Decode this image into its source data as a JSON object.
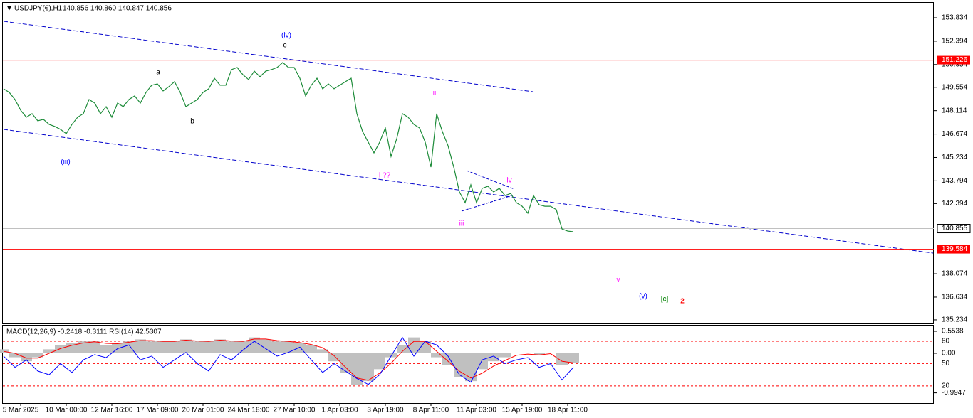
{
  "header": {
    "symbol": "USDJPY(€),H1",
    "quote": "140.856 140.860 140.847 140.856"
  },
  "chart_data": [
    {
      "type": "line",
      "color": "#1e8c3a",
      "categories": [
        null,
        null,
        null,
        "5 Mar 2025",
        null,
        null,
        null,
        null,
        null,
        null,
        null,
        "10 Mar 00:00",
        null,
        null,
        null,
        null,
        null,
        null,
        null,
        "12 Mar 16:00",
        null,
        null,
        null,
        null,
        null,
        null,
        null,
        "17 Mar 09:00",
        null,
        null,
        null,
        null,
        null,
        null,
        null,
        "20 Mar 01:00",
        null,
        null,
        null,
        null,
        null,
        null,
        null,
        "24 Mar 18:00",
        null,
        null,
        null,
        null,
        null,
        null,
        null,
        "27 Mar 10:00",
        null,
        null,
        null,
        null,
        null,
        null,
        null,
        "1 Apr 03:00",
        null,
        null,
        null,
        null,
        null,
        null,
        null,
        "3 Apr 19:00",
        null,
        null,
        null,
        null,
        null,
        null,
        null,
        "8 Apr 11:00",
        null,
        null,
        null,
        null,
        null,
        null,
        null,
        "11 Apr 03:00",
        null,
        null,
        null,
        null,
        null,
        null,
        null,
        "15 Apr 19:00",
        null,
        null,
        null,
        null,
        null,
        null,
        null,
        "18 Apr 11:00",
        null
      ],
      "values": [
        149.46,
        149.24,
        148.8,
        148.14,
        147.71,
        147.93,
        147.49,
        147.58,
        147.27,
        147.14,
        146.96,
        146.7,
        147.27,
        147.71,
        147.93,
        148.8,
        148.58,
        147.93,
        148.36,
        147.71,
        148.58,
        148.36,
        148.8,
        149.02,
        148.58,
        149.24,
        149.68,
        149.76,
        149.33,
        149.59,
        149.9,
        149.24,
        148.36,
        148.58,
        148.8,
        149.24,
        149.46,
        150.11,
        149.68,
        149.68,
        150.64,
        150.77,
        150.33,
        150.03,
        150.55,
        150.2,
        150.55,
        150.64,
        150.77,
        151.08,
        150.77,
        150.77,
        150.11,
        149.02,
        149.68,
        150.11,
        149.46,
        149.76,
        149.46,
        149.68,
        149.9,
        150.11,
        147.93,
        146.83,
        146.17,
        145.52,
        146.17,
        147.05,
        145.3,
        146.39,
        147.93,
        147.71,
        147.27,
        147.05,
        146.17,
        144.64,
        147.93,
        146.83,
        145.96,
        144.64,
        143.11,
        142.45,
        143.55,
        142.45,
        143.33,
        143.46,
        143.11,
        143.33,
        142.89,
        143.02,
        142.45,
        142.23,
        141.8,
        142.89,
        142.32,
        142.23,
        142.23,
        142.02,
        140.83,
        140.7,
        140.66
      ],
      "ylim": [
        135.013,
        154.709
      ],
      "yticks": [
        153.834,
        152.394,
        150.954,
        149.554,
        148.114,
        146.674,
        145.234,
        143.794,
        142.394,
        138.074,
        136.634,
        135.234
      ],
      "levels": [
        {
          "value": 151.226,
          "color": "#ff0000"
        },
        {
          "value": 139.584,
          "color": "#ff0000"
        }
      ],
      "current": {
        "value": 140.855,
        "color": "#c0c0c0"
      },
      "annotations": [
        {
          "text": "(iv)",
          "color": "#0000ff"
        },
        {
          "text": "c",
          "color": "#000000"
        },
        {
          "text": "a",
          "color": "#000000"
        },
        {
          "text": "b",
          "color": "#000000"
        },
        {
          "text": "(iii)",
          "color": "#0000ff"
        },
        {
          "text": "ii",
          "color": "#ff00ff"
        },
        {
          "text": "i ??",
          "color": "#ff00ff"
        },
        {
          "text": "iii",
          "color": "#ff00ff"
        },
        {
          "text": "iv",
          "color": "#ff00ff"
        },
        {
          "text": "v",
          "color": "#ff00ff"
        },
        {
          "text": "(v)",
          "color": "#0000ff"
        },
        {
          "text": "[c]",
          "color": "#008000"
        },
        {
          "text": "2",
          "color": "#ff0000"
        }
      ]
    },
    {
      "type": "indicator",
      "title": "MACD(12,26,9) -0.2418 -0.3111 RSI(14) 42.5307",
      "ylim": [
        -1.27,
        0.697
      ],
      "yticks": [
        0.5538,
        {
          "value": 0,
          "label": "0.00"
        },
        -0.9947
      ],
      "y2lim": [
        -4,
        101
      ],
      "y2ticks": [
        80,
        50,
        20
      ],
      "y2_level_color": "#ff0000",
      "series": [
        {
          "style": "histogram",
          "color": "#c0c0c0",
          "values": [
            0.1,
            -0.1,
            -0.2,
            -0.1,
            0.1,
            0.2,
            0.25,
            0.3,
            0.3,
            0.2,
            0.25,
            0.3,
            0.35,
            0.3,
            0.3,
            0.3,
            0.35,
            0.3,
            0.3,
            0.35,
            0.3,
            0.3,
            0.4,
            0.35,
            0.3,
            0.3,
            0.25,
            0.2,
            0.1,
            -0.2,
            -0.5,
            -0.8,
            -0.7,
            -0.4,
            -0.1,
            0.2,
            0.4,
            0.3,
            -0.1,
            -0.3,
            -0.6,
            -0.7,
            -0.4,
            -0.2,
            -0.1,
            0.0,
            0.0,
            -0.05,
            0.0,
            -0.3,
            -0.25
          ]
        },
        {
          "style": "line",
          "color": "#ff0000",
          "values": [
            0.05,
            0,
            -0.12,
            -0.12,
            0,
            0.12,
            0.2,
            0.26,
            0.29,
            0.25,
            0.24,
            0.28,
            0.32,
            0.32,
            0.3,
            0.3,
            0.33,
            0.31,
            0.3,
            0.33,
            0.31,
            0.3,
            0.36,
            0.36,
            0.32,
            0.3,
            0.27,
            0.22,
            0.14,
            -0.06,
            -0.35,
            -0.62,
            -0.68,
            -0.5,
            -0.25,
            0.05,
            0.3,
            0.3,
            0.05,
            -0.2,
            -0.45,
            -0.62,
            -0.5,
            -0.32,
            -0.18,
            -0.05,
            -0.02,
            -0.04,
            -0.01,
            -0.2,
            -0.24
          ]
        },
        {
          "style": "line",
          "axis": "y2",
          "color": "#0000ff",
          "values": [
            60,
            45,
            55,
            40,
            35,
            50,
            38,
            55,
            62,
            58,
            70,
            75,
            55,
            60,
            45,
            55,
            65,
            50,
            40,
            62,
            55,
            68,
            80,
            70,
            60,
            65,
            72,
            55,
            38,
            50,
            40,
            30,
            22,
            35,
            60,
            85,
            60,
            80,
            75,
            60,
            35,
            25,
            55,
            60,
            50,
            55,
            58,
            45,
            50,
            28,
            45
          ]
        }
      ]
    }
  ]
}
